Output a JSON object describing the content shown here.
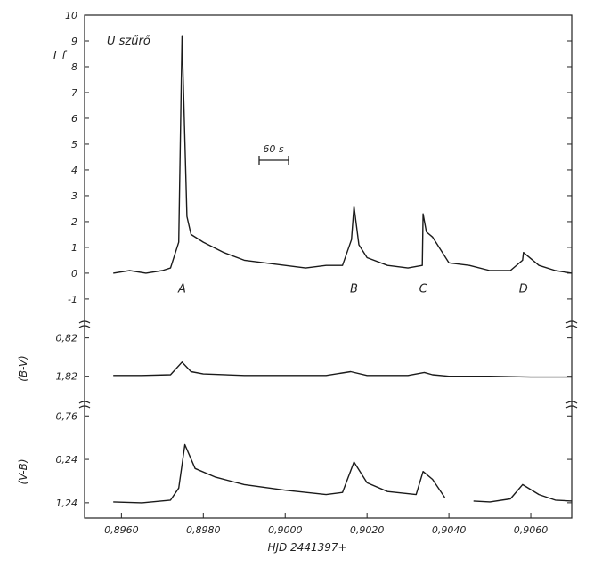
{
  "chart_data": {
    "type": "line",
    "xlabel": "HJD 2441397+",
    "x_ticks": [
      "0,8960",
      "0,8980",
      "0,9000",
      "0,9020",
      "0,9040",
      "0,9060"
    ],
    "x_tick_values": [
      0.896,
      0.898,
      0.9,
      0.902,
      0.904,
      0.906
    ],
    "xlim": [
      0.8951,
      0.907
    ],
    "annotations": {
      "filter_label": "U szűrő",
      "scale_bar_label": "60 s",
      "peaks": [
        "A",
        "B",
        "C",
        "D"
      ],
      "peak_x": [
        0.89748,
        0.90168,
        0.90337,
        0.90582
      ]
    },
    "panels": [
      {
        "ylabel": "I_f",
        "ylim": [
          -1.9,
          10
        ],
        "y_ticks": [
          "10",
          "9",
          "8",
          "7",
          "6",
          "5",
          "4",
          "3",
          "2",
          "1",
          "0",
          "-1"
        ],
        "y_tick_values": [
          10,
          9,
          8,
          7,
          6,
          5,
          4,
          3,
          2,
          1,
          0,
          -1
        ],
        "series": [
          {
            "x": [
              0.8958,
              0.8962,
              0.8966,
              0.897,
              0.8972,
              0.8974,
              0.89748,
              0.8976,
              0.8977,
              0.898,
              0.8985,
              0.899,
              0.8995,
              0.9,
              0.9005,
              0.901,
              0.9014,
              0.90162,
              0.90168,
              0.9018,
              0.902,
              0.9025,
              0.903,
              0.90335,
              0.90337,
              0.90345,
              0.9036,
              0.904,
              0.9045,
              0.905,
              0.9055,
              0.9058,
              0.90582,
              0.9062,
              0.9066,
              0.907
            ],
            "values": [
              0.0,
              0.1,
              0.0,
              0.1,
              0.2,
              1.2,
              9.2,
              2.2,
              1.5,
              1.2,
              0.8,
              0.5,
              0.4,
              0.3,
              0.2,
              0.3,
              0.3,
              1.3,
              2.6,
              1.1,
              0.6,
              0.3,
              0.2,
              0.3,
              2.3,
              1.6,
              1.4,
              0.4,
              0.3,
              0.1,
              0.1,
              0.5,
              0.8,
              0.3,
              0.1,
              0.0
            ]
          }
        ]
      },
      {
        "ylabel": "(B-V)",
        "ylim": [
          2.5,
          0.55
        ],
        "y_ticks": [
          "0,82",
          "1,82"
        ],
        "y_tick_values": [
          0.82,
          1.82
        ],
        "series": [
          {
            "x": [
              0.8958,
              0.8965,
              0.8972,
              0.89748,
              0.8977,
              0.898,
              0.899,
              0.9,
              0.901,
              0.9016,
              0.902,
              0.903,
              0.9034,
              0.9036,
              0.904,
              0.905,
              0.906,
              0.907
            ],
            "values": [
              1.8,
              1.8,
              1.78,
              1.45,
              1.7,
              1.76,
              1.8,
              1.8,
              1.8,
              1.7,
              1.8,
              1.8,
              1.72,
              1.78,
              1.82,
              1.82,
              1.84,
              1.84
            ]
          }
        ]
      },
      {
        "ylabel": "(V-B)",
        "ylim": [
          1.55,
          -0.95
        ],
        "y_ticks": [
          "-0,76",
          "0,24",
          "1,24"
        ],
        "y_tick_values": [
          -0.76,
          0.24,
          1.24
        ],
        "series": [
          {
            "x": [
              0.8958,
              0.8965,
              0.8972,
              0.8974,
              0.89755,
              0.8978,
              0.8983,
              0.899,
              0.9,
              0.901,
              0.9014,
              0.90168,
              0.902,
              0.9025,
              0.9032,
              0.90337,
              0.9036,
              0.9039
            ],
            "values": [
              1.22,
              1.24,
              1.18,
              0.9,
              -0.1,
              0.45,
              0.65,
              0.82,
              0.95,
              1.05,
              1.0,
              0.3,
              0.78,
              0.98,
              1.05,
              0.52,
              0.7,
              1.12
            ]
          },
          {
            "x": [
              0.9046,
              0.905,
              0.9055,
              0.9058,
              0.9062,
              0.9066,
              0.907
            ],
            "values": [
              1.2,
              1.22,
              1.15,
              0.82,
              1.05,
              1.18,
              1.2
            ]
          }
        ]
      }
    ]
  }
}
